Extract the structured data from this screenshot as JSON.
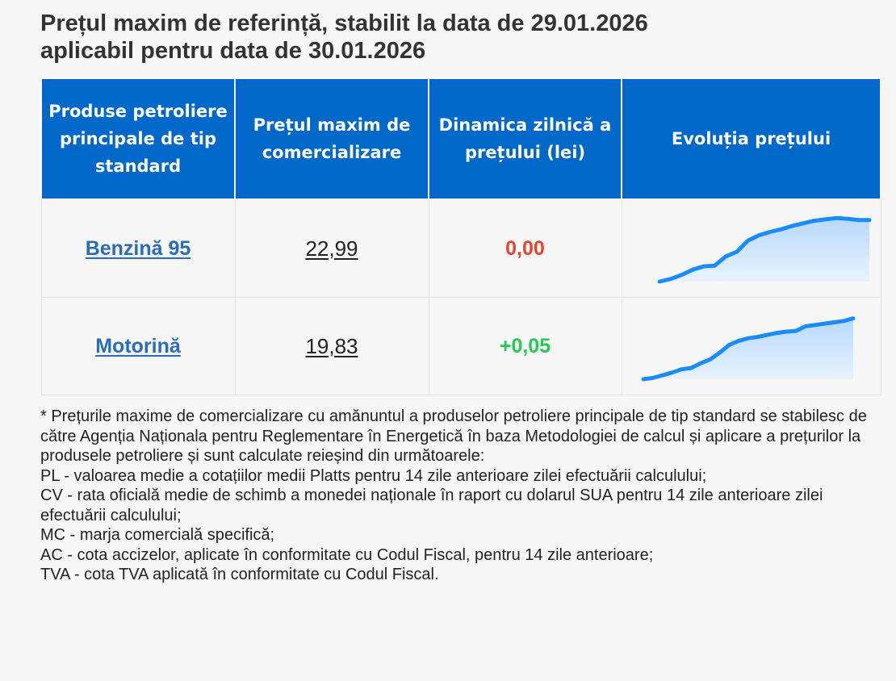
{
  "title_line1": "Prețul maxim de referință, stabilit la data de 29.01.2026",
  "title_line2": "aplicabil pentru data de 30.01.2026",
  "colors": {
    "header_bg": "#0068c9",
    "link": "#2b6cb8",
    "delta_zero": "#e8432f",
    "delta_positive": "#22cc55",
    "spark_line": "#1a8cff",
    "spark_fill_top": "#b9d9fb"
  },
  "table": {
    "headers": [
      "Produse petroliere principale de tip standard",
      "Prețul maxim de comercializare",
      "Dinamica zilnică a prețului (lei)",
      "Evoluția prețului"
    ],
    "rows": [
      {
        "product": "Benzină 95",
        "price": "22,99",
        "delta": "0,00",
        "delta_color": "#e8432f",
        "trend": [
          0,
          0.04,
          0.1,
          0.18,
          0.23,
          0.24,
          0.38,
          0.45,
          0.62,
          0.7,
          0.75,
          0.79,
          0.84,
          0.88,
          0.92,
          0.94,
          0.96,
          0.95,
          0.93,
          0.93
        ]
      },
      {
        "product": "Motorină",
        "price": "19,83",
        "delta": "+0,05",
        "delta_color": "#22cc55",
        "trend": [
          0,
          0.02,
          0.06,
          0.1,
          0.15,
          0.17,
          0.24,
          0.3,
          0.4,
          0.52,
          0.58,
          0.62,
          0.64,
          0.67,
          0.7,
          0.72,
          0.73,
          0.8,
          0.82,
          0.84,
          0.86,
          0.88,
          0.92
        ]
      }
    ]
  },
  "notes": [
    "* Prețurile maxime de comercializare cu amănuntul a produselor petroliere principale de tip standard se stabilesc de către Agenția Naționala pentru Reglementare în Energetică în baza Metodologiei de calcul și aplicare a prețurilor la produsele petroliere și sunt calculate reieșind din următoarele:",
    "PL - valoarea medie a cotațiilor medii Platts pentru 14 zile anterioare zilei efectuării calculului;",
    "CV - rata oficială medie de schimb a monedei naționale în raport cu dolarul SUA pentru 14 zile anterioare zilei efectuării calculului;",
    "MC - marja comercială specifică;",
    "AC - cota accizelor, aplicate în conformitate cu Codul Fiscal, pentru 14 zile anterioare;",
    "TVA - cota TVA aplicată în conformitate cu Codul Fiscal."
  ]
}
